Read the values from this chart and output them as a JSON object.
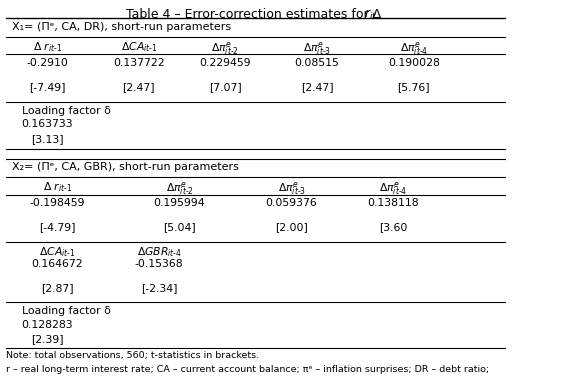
{
  "bg_color": "#ffffff",
  "title": "Table 4 – Error-correction estimates for Δ r",
  "section1_header": "X₁= (Πᵉ, CA, DR), short-run parameters",
  "section1_values": [
    "-0.2910",
    "0.137722",
    "0.229459",
    "0.08515",
    "0.190028"
  ],
  "section1_tstats": [
    "[-7.49]",
    "[2.47]",
    "[7.07]",
    "[2.47]",
    "[5.76]"
  ],
  "section1_loading_label": "Loading factor δ",
  "section1_loading_value": "0.163733",
  "section1_loading_tstat": "[3.13]",
  "section2_header": "X₂= (Πᵉ, CA, GBR), short-run parameters",
  "section2_values": [
    "-0.198459",
    "0.195994",
    "0.059376",
    "0.138118"
  ],
  "section2_tstats": [
    "[-4.79]",
    "[5.04]",
    "[2.00]",
    "[3.60"
  ],
  "section2_col2_values": [
    "0.164672",
    "-0.15368"
  ],
  "section2_col2_tstats": [
    "[2.87]",
    "[-2.34]"
  ],
  "section2_loading_label": "Loading factor δ",
  "section2_loading_value": "0.128283",
  "section2_loading_tstat": "[2.39]",
  "note": "Note: total observations, 560; t-statistics in brackets.",
  "note2": "r – real long-term interest rate; CA – current account balance; πᵉ – inflation surprises; DR – debt ratio;"
}
